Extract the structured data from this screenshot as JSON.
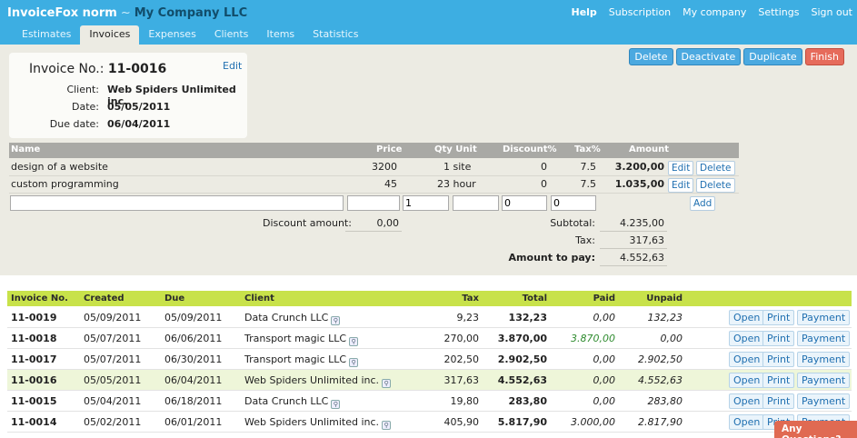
{
  "header": {
    "app_name": "InvoiceFox norm",
    "separator": "~",
    "company": "My Company LLC",
    "nav": [
      "Help",
      "Subscription",
      "My company",
      "Settings",
      "Sign out"
    ],
    "tabs": [
      "Estimates",
      "Invoices",
      "Expenses",
      "Clients",
      "Items",
      "Statistics"
    ],
    "active_tab": "Invoices"
  },
  "invoice": {
    "no_label": "Invoice No.:",
    "no_value": "11-0016",
    "edit_label": "Edit",
    "client_label": "Client:",
    "client_value": "Web Spiders Unlimited inc.",
    "date_label": "Date:",
    "date_value": "05/05/2011",
    "due_label": "Due date:",
    "due_value": "06/04/2011"
  },
  "actions": [
    "Delete",
    "Deactivate",
    "Duplicate",
    "Finish"
  ],
  "items": {
    "columns": [
      "Name",
      "Price",
      "Qty Unit",
      "Discount%",
      "Tax%",
      "Amount"
    ],
    "rows": [
      {
        "name": "design of a website",
        "price": "3200",
        "qty_unit": "1 site",
        "discount": "0",
        "tax": "7.5",
        "amount": "3.200,00"
      },
      {
        "name": "custom programming",
        "price": "45",
        "qty_unit": "23 hour",
        "discount": "0",
        "tax": "7.5",
        "amount": "1.035,00"
      }
    ],
    "edit_label": "Edit",
    "delete_label": "Delete",
    "add_label": "Add",
    "new_row": {
      "qty": "1",
      "discount": "0",
      "tax": "0"
    }
  },
  "totals": {
    "discount_label": "Discount amount:",
    "discount_value": "0,00",
    "subtotal_label": "Subtotal:",
    "subtotal_value": "4.235,00",
    "tax_label": "Tax:",
    "tax_value": "317,63",
    "pay_label": "Amount to pay:",
    "pay_value": "4.552,63"
  },
  "list": {
    "columns": [
      "Invoice No.",
      "Created",
      "Due",
      "Client",
      "Tax",
      "Total",
      "Paid",
      "Unpaid"
    ],
    "actions": [
      "Open",
      "Print",
      "Payment"
    ],
    "rows": [
      {
        "no": "11-0019",
        "created": "05/09/2011",
        "due": "05/09/2011",
        "client": "Data Crunch LLC",
        "tax": "9,23",
        "total": "132,23",
        "paid": "0,00",
        "unpaid": "132,23"
      },
      {
        "no": "11-0018",
        "created": "05/07/2011",
        "due": "06/06/2011",
        "client": "Transport magic LLC",
        "tax": "270,00",
        "total": "3.870,00",
        "paid": "3.870,00",
        "unpaid": "0,00"
      },
      {
        "no": "11-0017",
        "created": "05/07/2011",
        "due": "06/30/2011",
        "client": "Transport magic LLC",
        "tax": "202,50",
        "total": "2.902,50",
        "paid": "0,00",
        "unpaid": "2.902,50"
      },
      {
        "no": "11-0016",
        "created": "05/05/2011",
        "due": "06/04/2011",
        "client": "Web Spiders Unlimited inc.",
        "tax": "317,63",
        "total": "4.552,63",
        "paid": "0,00",
        "unpaid": "4.552,63"
      },
      {
        "no": "11-0015",
        "created": "05/04/2011",
        "due": "06/18/2011",
        "client": "Data Crunch LLC",
        "tax": "19,80",
        "total": "283,80",
        "paid": "0,00",
        "unpaid": "283,80"
      },
      {
        "no": "11-0014",
        "created": "05/02/2011",
        "due": "06/01/2011",
        "client": "Web Spiders Unlimited inc.",
        "tax": "405,90",
        "total": "5.817,90",
        "paid": "3.000,00",
        "unpaid": "2.817,90"
      }
    ]
  },
  "help_tab": "Any Questions?",
  "colors": {
    "header": "#3daee2",
    "panel": "#ecebe3",
    "list_header": "#c8e24a",
    "paid_green": "#2e8b2e"
  }
}
